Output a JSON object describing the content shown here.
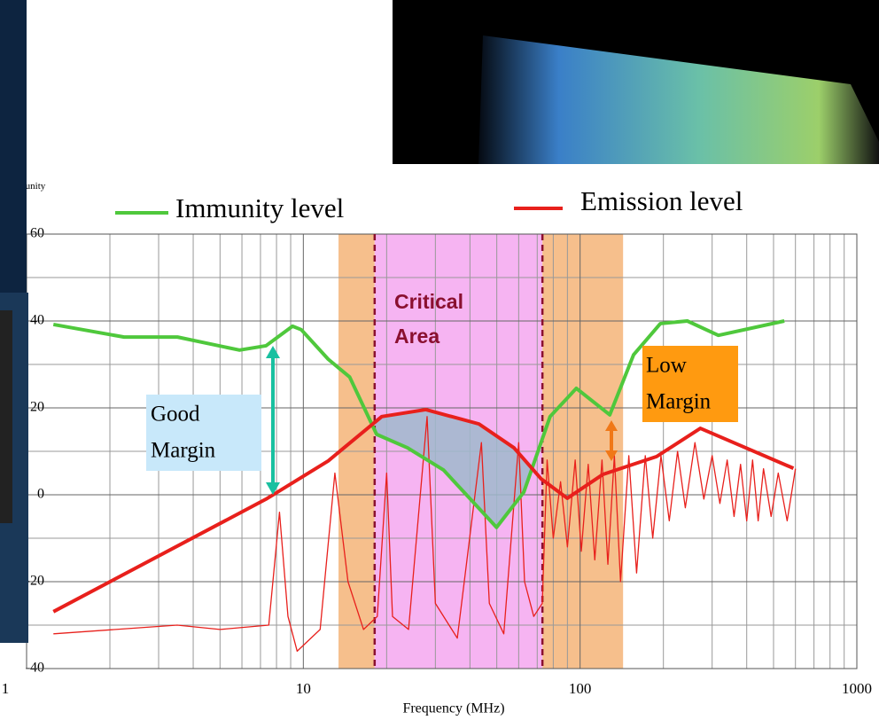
{
  "chart_data": {
    "type": "line",
    "y_label": "B",
    "y_label_sub": "unity",
    "x_label": "Frequency (MHz)",
    "log_x": true,
    "grid": true,
    "xlim": [
      1,
      1000
    ],
    "xticks": [
      1,
      10,
      100,
      1000
    ],
    "ylim": [
      -40,
      60
    ],
    "yticks": [
      -40,
      -20,
      0,
      20,
      40,
      60
    ],
    "series": [
      {
        "name": "Immunity level",
        "color": "#4fc83c",
        "width": 4,
        "x": [
          1.25,
          2.25,
          3.51,
          5.88,
          7.33,
          9.14,
          9.83,
          12.3,
          14.7,
          18.4,
          23.8,
          32.1,
          49.9,
          62.6,
          77.9,
          96.9,
          128,
          156,
          195,
          244,
          316,
          547
        ],
        "values": [
          39.2,
          36.3,
          36.3,
          33.3,
          34.3,
          38.8,
          38,
          31.2,
          27.1,
          13.9,
          10.8,
          5.7,
          -7.5,
          0.6,
          18,
          24.5,
          18.4,
          32.2,
          39.4,
          40,
          36.7,
          40
        ]
      },
      {
        "name": "Emission level",
        "color": "#e8201c",
        "width": 4,
        "x": [
          1.25,
          7.33,
          12.3,
          19.2,
          27.7,
          43.1,
          57.7,
          72.2,
          89.9,
          121,
          189,
          272,
          365,
          590
        ],
        "values": [
          -26.9,
          -1,
          7.8,
          18,
          19.6,
          16.3,
          10.8,
          3.7,
          -0.8,
          4.7,
          8.8,
          15.3,
          11.8,
          6.1
        ]
      },
      {
        "color": "#e8201c",
        "width": 1.3,
        "x": [
          1.25,
          3.5,
          5,
          7.5,
          8.2,
          8.8,
          9.5,
          11.5,
          13,
          14.5,
          16.5,
          18.5,
          20,
          21,
          24,
          28,
          30,
          36,
          44,
          47,
          53,
          60,
          63,
          68,
          73,
          76,
          80,
          85,
          90,
          96,
          101,
          107,
          113,
          120,
          126,
          133,
          140,
          150,
          160,
          172,
          183,
          196,
          210,
          225,
          240,
          260,
          280,
          300,
          320,
          340,
          360,
          380,
          400,
          420,
          440,
          460,
          490,
          520,
          560,
          600
        ],
        "values": [
          -32,
          -30,
          -31,
          -30,
          -4,
          -28,
          -36,
          -31,
          5,
          -20,
          -31,
          -28,
          5,
          -28,
          -31,
          18,
          -25,
          -33,
          12,
          -25,
          -32,
          12,
          -20,
          -28,
          -25,
          8,
          -10,
          3,
          -12,
          8,
          -13,
          7,
          -15,
          8,
          -16,
          9,
          -20,
          9,
          -18,
          9,
          -10,
          9,
          -6,
          10,
          -3,
          12,
          -1,
          9,
          -2,
          8,
          -5,
          7,
          -6,
          8,
          -6,
          6,
          -5,
          5,
          -6,
          6
        ]
      }
    ],
    "bands": [
      {
        "from": 13.4,
        "to": 18.1,
        "color": "#f6bf8c"
      },
      {
        "from": 18.1,
        "to": 73.1,
        "color": "#f6b4f2"
      },
      {
        "from": 73.1,
        "to": 143,
        "color": "#f6bf8c"
      }
    ],
    "markers": [
      18.1,
      73.1
    ],
    "annotations": {
      "critical": [
        "Critical",
        "Area"
      ],
      "good": [
        "Good",
        "Margin"
      ],
      "low": [
        "Low",
        "Margin"
      ]
    }
  }
}
